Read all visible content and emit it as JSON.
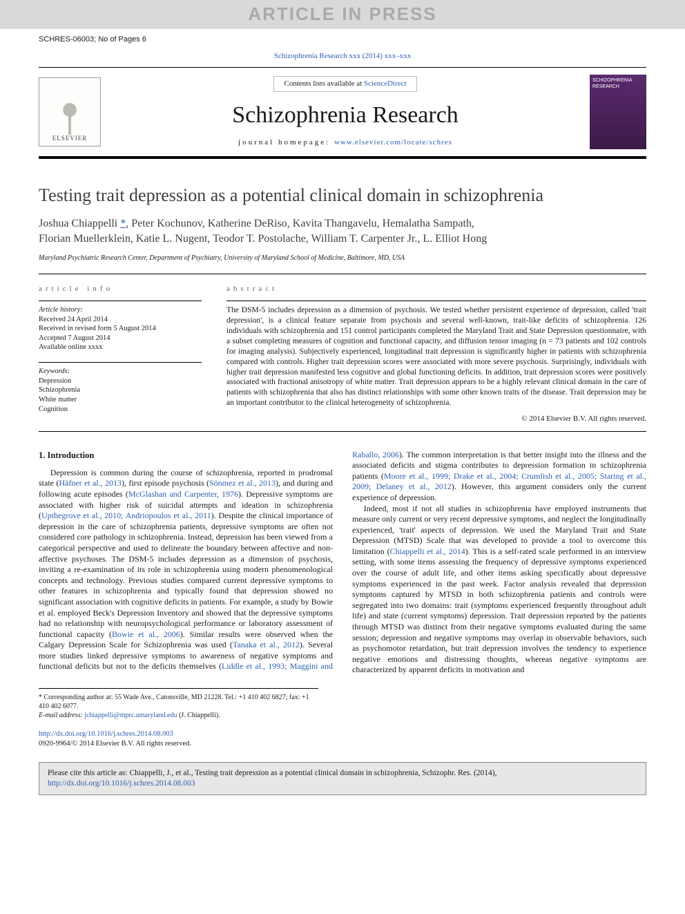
{
  "watermark": "ARTICLE IN PRESS",
  "model_ref": "SCHRES-06003; No of Pages 6",
  "journal_ref_text": "Schizophrenia Research xxx (2014) xxx–xxx",
  "masthead": {
    "contents_prefix": "Contents lists available at ",
    "contents_link": "ScienceDirect",
    "journal_title": "Schizophrenia Research",
    "homepage_label": "journal homepage: ",
    "homepage_url": "www.elsevier.com/locate/schres",
    "elsevier_label": "ELSEVIER",
    "cover_text": "SCHIZOPHRENIA RESEARCH"
  },
  "article": {
    "title": "Testing trait depression as a potential clinical domain in schizophrenia",
    "authors_line1": "Joshua Chiappelli ",
    "corr_marker": "*",
    "authors_line1b": ", Peter Kochunov, Katherine DeRiso, Kavita Thangavelu, Hemalatha Sampath,",
    "authors_line2": "Florian Muellerklein, Katie L. Nugent, Teodor T. Postolache, William T. Carpenter Jr., L. Elliot Hong",
    "affiliation": "Maryland Psychiatric Research Center, Department of Psychiatry, University of Maryland School of Medicine, Baltimore, MD, USA"
  },
  "info": {
    "heading": "article info",
    "history_label": "Article history:",
    "received": "Received 24 April 2014",
    "revised": "Received in revised form 5 August 2014",
    "accepted": "Accepted 7 August 2014",
    "online": "Available online xxxx",
    "keywords_label": "Keywords:",
    "kw1": "Depression",
    "kw2": "Schizophrenia",
    "kw3": "White matter",
    "kw4": "Cognition"
  },
  "abstract": {
    "heading": "abstract",
    "text": "The DSM-5 includes depression as a dimension of psychosis. We tested whether persistent experience of depression, called 'trait depression', is a clinical feature separate from psychosis and several well-known, trait-like deficits of schizophrenia. 126 individuals with schizophrenia and 151 control participants completed the Maryland Trait and State Depression questionnaire, with a subset completing measures of cognition and functional capacity, and diffusion tensor imaging (n = 73 patients and 102 controls for imaging analysis). Subjectively experienced, longitudinal trait depression is significantly higher in patients with schizophrenia compared with controls. Higher trait depression scores were associated with more severe psychosis. Surprisingly, individuals with higher trait depression manifested less cognitive and global functioning deficits. In addition, trait depression scores were positively associated with fractional anisotropy of white matter. Trait depression appears to be a highly relevant clinical domain in the care of patients with schizophrenia that also has distinct relationships with some other known traits of the disease. Trait depression may be an important contributor to the clinical heterogeneity of schizophrenia.",
    "copyright": "© 2014 Elsevier B.V. All rights reserved."
  },
  "body": {
    "sec1": "1. Introduction",
    "p1a": "Depression is common during the course of schizophrenia, reported in prodromal state (",
    "c1": "Häfner et al., 2013",
    "p1b": "), first episode psychosis (",
    "c2": "Sönmez et al., 2013",
    "p1c": "), and during and following acute episodes (",
    "c3": "McGlashan and Carpenter, 1976",
    "p1d": "). Depressive symptoms are associated with higher risk of suicidal attempts and ideation in schizophrenia (",
    "c4": "Upthegrove et al., 2010; Andriopoulos et al., 2011",
    "p1e": "). Despite the clinical importance of depression in the care of schizophrenia patients, depressive symptoms are often not considered core pathology in schizophrenia. Instead, depression has been viewed from a categorical perspective and used to delineate the boundary between affective and non-affective psychoses. The DSM-5 includes depression as a dimension of psychosis, inviting a re-examination of its role in schizophrenia using modern phenomenological concepts and technology. Previous studies compared current depressive symptoms to other features in schizophrenia and typically found that depression showed no significant association with cognitive deficits in patients. For example, a study by Bowie et al. employed Beck's Depression Inventory and showed that the depressive symptoms had no relationship with neuropsychological performance or laboratory assessment of functional capacity (",
    "c5": "Bowie et al., 2006",
    "p1f": "). Similar results were observed when the Calgary Depression Scale for Schizophrenia was used (",
    "c6": "Tanaka et al.,",
    "c6b": "2012",
    "p2a": "). Several more studies linked depressive symptoms to awareness of negative symptoms and functional deficits but not to the deficits themselves (",
    "c7": "Liddle et al., 1993; Maggini and Raballo, 2006",
    "p2b": "). The common interpretation is that better insight into the illness and the associated deficits and stigma contributes to depression formation in schizophrenia patients (",
    "c8": "Moore et al., 1999; Drake et al., 2004; Crumlish et al., 2005; Staring et al., 2009; Delaney et al., 2012",
    "p2c": "). However, this argument considers only the current experience of depression.",
    "p3a": "Indeed, most if not all studies in schizophrenia have employed instruments that measure only current or very recent depressive symptoms, and neglect the longitudinally experienced, 'trait' aspects of depression. We used the Maryland Trait and State Depression (MTSD) Scale that was developed to provide a tool to overcome this limitation (",
    "c9": "Chiappelli et al., 2014",
    "p3b": "). This is a self-rated scale performed in an interview setting, with some items assessing the frequency of depressive symptoms experienced over the course of adult life, and other items asking specifically about depressive symptoms experienced in the past week. Factor analysis revealed that depression symptoms captured by MTSD in both schizophrenia patients and controls were segregated into two domains: trait (symptoms experienced frequently throughout adult life) and state (current symptoms) depression. Trait depression reported by the patients through MTSD was distinct from their negative symptoms evaluated during the same session; depression and negative symptoms may overlap in observable behaviors, such as psychomotor retardation, but trait depression involves the tendency to experience negative emotions and distressing thoughts, whereas negative symptoms are characterized by apparent deficits in motivation and"
  },
  "footnote": {
    "corr_label": "* Corresponding author at: 55 Wade Ave., Catonsville, MD 21228. Tel.: +1 410 402 6827; fax: +1 410 402 6077.",
    "email_label": "E-mail address:",
    "email": "jchiappelli@mprc.umaryland.edu",
    "email_who": "(J. Chiappelli)."
  },
  "doi": {
    "url": "http://dx.doi.org/10.1016/j.schres.2014.08.003",
    "issn_line": "0920-9964/© 2014 Elsevier B.V. All rights reserved."
  },
  "citebox": {
    "prefix": "Please cite this article as: Chiappelli, J., et al., Testing trait depression as a potential clinical domain in schizophrenia, Schizophr. Res. (2014), ",
    "link": "http://dx.doi.org/10.1016/j.schres.2014.08.003"
  }
}
